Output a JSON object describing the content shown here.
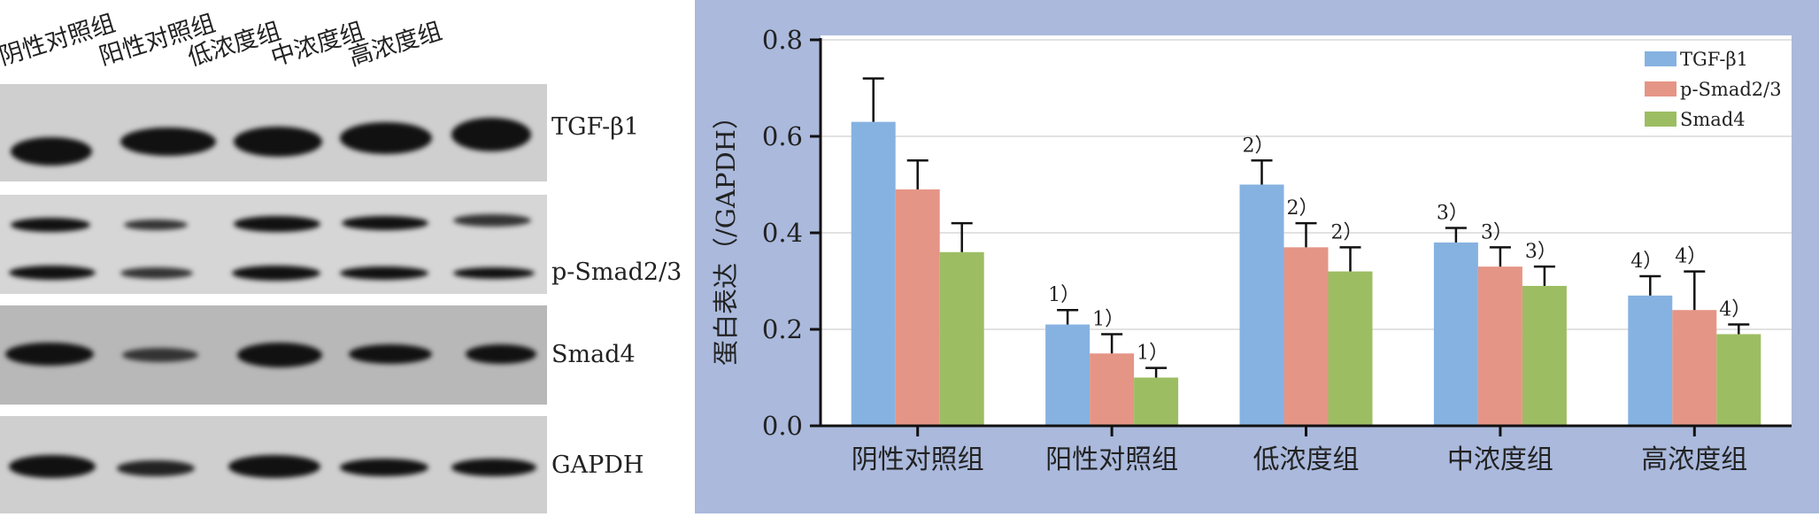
{
  "blot": {
    "lanes": [
      "阴性对照组",
      "阳性对照组",
      "低浓度组",
      "中浓度组",
      "高浓度组"
    ],
    "proteins": [
      "TGF-β1",
      "p-Smad2/3",
      "Smad4",
      "GAPDH"
    ]
  },
  "chart_data": {
    "type": "bar",
    "categories": [
      "阴性对照组",
      "阳性对照组",
      "低浓度组",
      "中浓度组",
      "高浓度组"
    ],
    "ylabel": "蛋白表达（/GAPDH）",
    "ylim": [
      0,
      0.8
    ],
    "yticks": [
      "0.0",
      "0.2",
      "0.4",
      "0.6",
      "0.8"
    ],
    "grid": true,
    "legend_position": "top-right",
    "series": [
      {
        "name": "TGF-β1",
        "color": "#86b2e1",
        "values": [
          0.63,
          0.21,
          0.5,
          0.38,
          0.27
        ],
        "errors": [
          0.09,
          0.03,
          0.05,
          0.03,
          0.04
        ],
        "annotations": [
          "",
          "1）",
          "2）",
          "3）",
          "4）"
        ]
      },
      {
        "name": "p-Smad2/3",
        "color": "#e59586",
        "values": [
          0.49,
          0.15,
          0.37,
          0.33,
          0.24
        ],
        "errors": [
          0.06,
          0.04,
          0.05,
          0.04,
          0.08
        ],
        "annotations": [
          "",
          "1）",
          "2）",
          "3）",
          "4）"
        ]
      },
      {
        "name": "Smad4",
        "color": "#9dbd63",
        "values": [
          0.36,
          0.1,
          0.32,
          0.29,
          0.19
        ],
        "errors": [
          0.06,
          0.02,
          0.05,
          0.04,
          0.02
        ],
        "annotations": [
          "",
          "1）",
          "2）",
          "3）",
          "4）"
        ]
      }
    ]
  }
}
